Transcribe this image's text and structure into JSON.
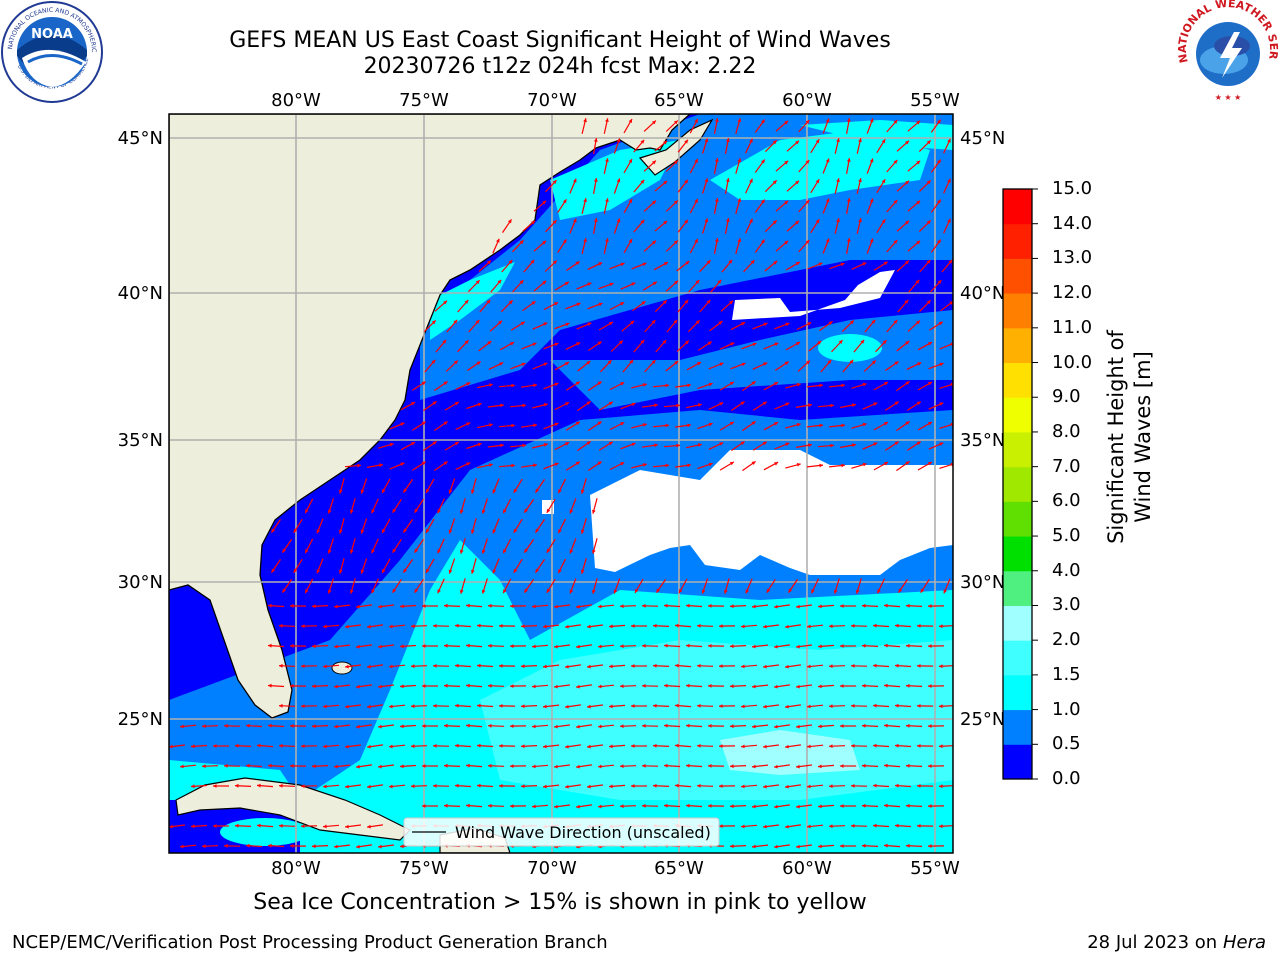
{
  "header": {
    "title_line1": "GEFS MEAN US East Coast Significant Height of Wind Waves",
    "title_line2": "20230726 t12z 024h fcst   Max: 2.22"
  },
  "logos": {
    "noaa_text": "NOAA",
    "noaa_ring_top": "NATIONAL OCEANIC AND ATMOSPHERIC ADMINISTRATION",
    "noaa_ring_bottom": "U.S. DEPARTMENT OF COMMERCE",
    "nws_ring": "NATIONAL WEATHER SERVICE"
  },
  "map": {
    "lon_ticks": [
      "80°W",
      "75°W",
      "70°W",
      "65°W",
      "60°W",
      "55°W"
    ],
    "lat_ticks": [
      "45°N",
      "40°N",
      "35°N",
      "30°N",
      "25°N"
    ],
    "legend_label": "Wind Wave Direction (unscaled)",
    "colors": {
      "land": "#EEEEDD",
      "gridline": "#B0B0B0",
      "arrow": "#FF0000",
      "no_data": "#FFFFFF"
    }
  },
  "colorbar": {
    "label": "Significant Height of Wind Waves [m]",
    "ticks": [
      "0.0",
      "0.5",
      "1.0",
      "1.5",
      "2.0",
      "3.0",
      "4.0",
      "5.0",
      "6.0",
      "7.0",
      "8.0",
      "9.0",
      "10.0",
      "11.0",
      "12.0",
      "13.0",
      "14.0",
      "15.0"
    ],
    "colors": [
      "#0000FF",
      "#0080FF",
      "#00FFFF",
      "#40FFFF",
      "#A0FFFF",
      "#50F080",
      "#00E000",
      "#60E000",
      "#A0E800",
      "#C8F000",
      "#F0FF00",
      "#FFE000",
      "#FFB000",
      "#FF8000",
      "#FF5000",
      "#FF2000",
      "#FF0000"
    ]
  },
  "note": "Sea Ice Concentration > 15% is shown in pink to yellow",
  "footer": {
    "left": "NCEP/EMC/Verification Post Processing Product Generation Branch",
    "date": "28 Jul 2023 on ",
    "host": "Hera"
  }
}
